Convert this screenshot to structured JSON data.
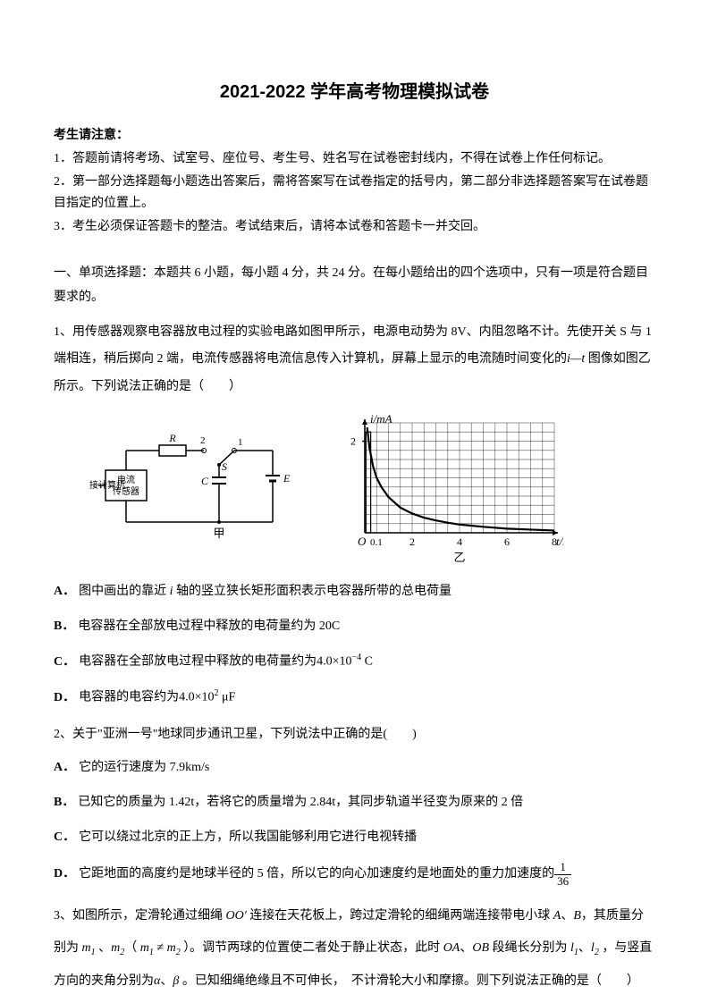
{
  "title": "2021-2022 学年高考物理模拟试卷",
  "notice": {
    "heading": "考生请注意：",
    "items": [
      "1．答题前请将考场、试室号、座位号、考生号、姓名写在试卷密封线内，不得在试卷上作任何标记。",
      "2．第一部分选择题每小题选出答案后，需将答案写在试卷指定的括号内，第二部分非选择题答案写在试卷题目指定的位置上。",
      "3．考生必须保证答题卡的整洁。考试结束后，请将本试卷和答题卡一并交回。"
    ]
  },
  "section1": {
    "intro": "一、单项选择题：本题共 6 小题，每小题 4 分，共 24 分。在每小题给出的四个选项中，只有一项是符合题目要求的。"
  },
  "q1": {
    "stem_pre": "1、用传感器观察电容器放电过程的实验电路如图甲所示，电源电动势为 8V、内阻忽略不计。先使开关 S 与 1 端相连，稍后掷向 2 端，电流传感器将电流信息传入计算机，屏幕上显示的电流随时间变化的",
    "stem_post": "图像如图乙所示。下列说法正确的是（　　）",
    "circuit": {
      "labels": {
        "connector": "接计算机",
        "sensor": "电流\n传感器",
        "R": "R",
        "S": "S",
        "terminal1": "1",
        "terminal2": "2",
        "C": "C",
        "E": "E",
        "caption": "甲"
      },
      "line_color": "#000000",
      "line_width": 1.5
    },
    "chart": {
      "type": "line",
      "y_label": "i/mA",
      "x_label": "t/s",
      "caption": "乙",
      "xlim": [
        0,
        8
      ],
      "ylim": [
        0,
        2.4
      ],
      "xticks": [
        0,
        0.1,
        2,
        4,
        6,
        8
      ],
      "xtick_labels": [
        "O",
        "0.1",
        "2",
        "4",
        "6",
        "8"
      ],
      "yticks": [
        0,
        2
      ],
      "ytick_labels": [
        "",
        "2"
      ],
      "grid_major_x": [
        0,
        2,
        4,
        6,
        8
      ],
      "grid_minor_step": 0.5,
      "grid_color": "#000000",
      "grid_width": 0.7,
      "axis_width": 1.6,
      "line_color": "#000000",
      "line_width": 2.2,
      "background_color": "#ffffff",
      "points": [
        [
          0.1,
          2.3
        ],
        [
          0.2,
          1.85
        ],
        [
          0.35,
          1.45
        ],
        [
          0.5,
          1.2
        ],
        [
          0.7,
          1.0
        ],
        [
          1.0,
          0.78
        ],
        [
          1.5,
          0.55
        ],
        [
          2.0,
          0.42
        ],
        [
          2.5,
          0.33
        ],
        [
          3.0,
          0.27
        ],
        [
          3.5,
          0.22
        ],
        [
          4.0,
          0.18
        ],
        [
          5.0,
          0.13
        ],
        [
          6.0,
          0.09
        ],
        [
          7.0,
          0.07
        ],
        [
          8.0,
          0.05
        ]
      ]
    },
    "options": {
      "A_pre": "图中画出的靠近 ",
      "A_mid": " 轴的竖立狭长矩形面积表示电容器所带的总电荷量",
      "B": "电容器在全部放电过程中释放的电荷量约为 20C",
      "C_pre": "电容器在全部放电过程中释放的电荷量约为",
      "C_val": "4.0×10",
      "C_exp": "−4",
      "C_unit": " C",
      "D_pre": "电容器的电容约为",
      "D_val": "4.0×10",
      "D_exp": "2",
      "D_unit": " μF"
    }
  },
  "q2": {
    "stem": "2、关于\"亚洲一号\"地球同步通讯卫星，下列说法中正确的是(　　)",
    "options": {
      "A": "它的运行速度为 7.9km/s",
      "B": "已知它的质量为 1.42t，若将它的质量增为 2.84t，其同步轨道半径变为原来的 2 倍",
      "C": "它可以绕过北京的正上方，所以我国能够利用它进行电视转播",
      "D_pre": "它距地面的高度约是地球半径的 5 倍，所以它的向心加速度约是地面处的重力加速度的",
      "D_num": "1",
      "D_den": "36"
    }
  },
  "q3": {
    "stem_p1": "3、如图所示，定滑轮通过细绳 ",
    "stem_p2": " 连接在天花板上，跨过定滑轮的细绳两端连接带电小球 ",
    "stem_p3": "，其质量分别为 ",
    "stem_p4": " 、",
    "stem_p5": "（ ",
    "stem_p6": " ）。调节两球的位置使二者处于静止状态，此时 ",
    "stem_p7": "、",
    "stem_p8": " 段绳长分别为 ",
    "stem_p9": "、",
    "stem_p10": " ，与竖直方向的夹角分别为",
    "stem_p11": "、",
    "stem_p12": " 。已知细绳绝缘且不可伸长，　不计滑轮大小和摩擦。则下列说法正确的是（　　）",
    "vars": {
      "OO": "OO′",
      "A": "A",
      "B": "B",
      "m1": "m",
      "m1_sub": "1",
      "m2": "m",
      "m2_sub": "2",
      "neq": "≠",
      "OA": "OA",
      "OB": "OB",
      "l1": "l",
      "l1_sub": "1",
      "l2": "l",
      "l2_sub": "2",
      "alpha": "α",
      "beta": "β"
    }
  }
}
